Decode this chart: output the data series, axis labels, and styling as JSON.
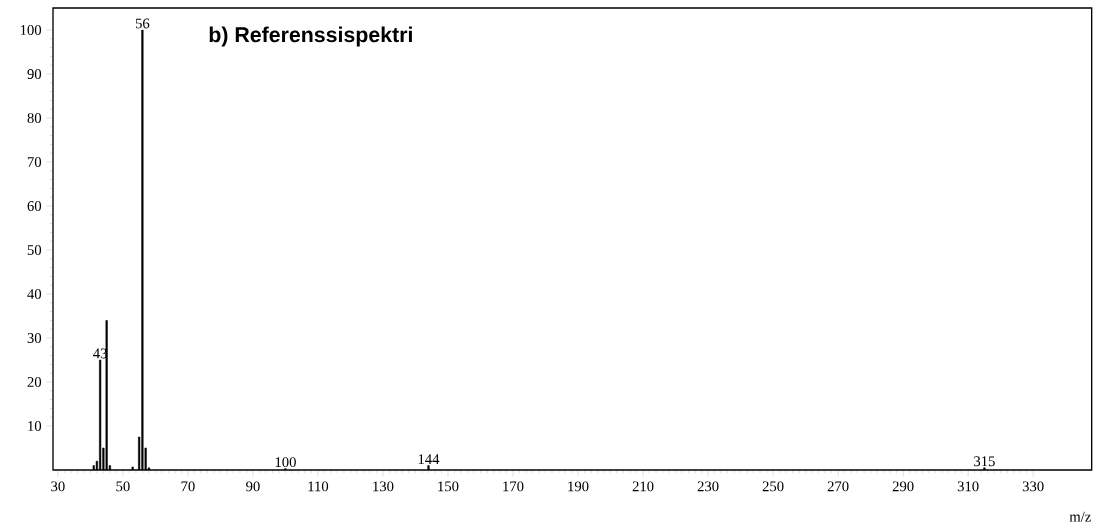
{
  "chart_data": {
    "type": "bar",
    "title": "b) Referenssispektri",
    "xlabel": "m/z",
    "x": [
      41,
      42,
      43,
      44,
      45,
      46,
      53,
      55,
      56,
      57,
      58,
      100,
      144,
      315
    ],
    "values": [
      1,
      2,
      25,
      5,
      34,
      1,
      0.7,
      7.5,
      100,
      5,
      0.5,
      0.3,
      1,
      0.5
    ],
    "color": "#000000",
    "xlim": [
      28.5,
      348
    ],
    "ylim": [
      0,
      105
    ],
    "xticks": [
      30,
      50,
      70,
      90,
      110,
      130,
      150,
      170,
      190,
      210,
      230,
      250,
      270,
      290,
      310,
      330
    ],
    "yticks": [
      10,
      20,
      30,
      40,
      50,
      60,
      70,
      80,
      90,
      100
    ],
    "annotations": [
      {
        "text": "43",
        "x": 43,
        "y": 25
      },
      {
        "text": "56",
        "x": 56,
        "y": 100
      },
      {
        "text": "100",
        "x": 100,
        "y": 0.3
      },
      {
        "text": "144",
        "x": 144,
        "y": 1
      },
      {
        "text": "315",
        "x": 315,
        "y": 0.5
      }
    ],
    "marker": "none"
  }
}
